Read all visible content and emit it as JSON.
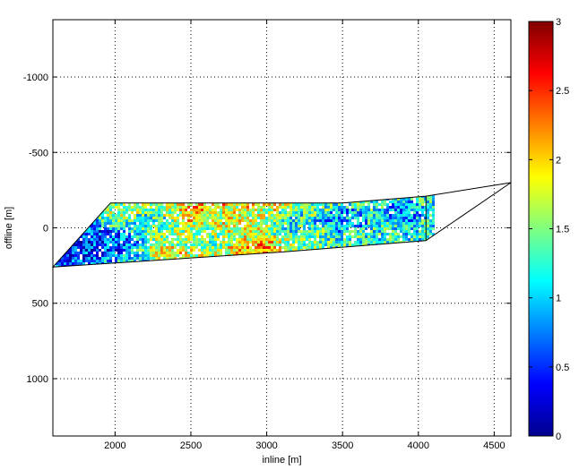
{
  "chart_data": [
    {
      "type": "heatmap",
      "title": "",
      "xlabel": "inline [m]",
      "ylabel": "offline [m]",
      "xlim": [
        1590,
        4610
      ],
      "ylim": [
        1380,
        -1380
      ],
      "y_reversed": true,
      "grid": true,
      "xticks": [
        2000,
        2500,
        3000,
        3500,
        4000,
        4500
      ],
      "xtick_labels": [
        "2000",
        "2500",
        "3000",
        "3500",
        "4000",
        "4500"
      ],
      "yticks": [
        -1000,
        -500,
        0,
        500,
        1000
      ],
      "ytick_labels": [
        "-1000",
        "-500",
        "0",
        "500",
        "1000"
      ],
      "outer_boundary": [
        [
          1590,
          260
        ],
        [
          1970,
          -165
        ],
        [
          3500,
          -165
        ],
        [
          4050,
          -210
        ],
        [
          4610,
          -300
        ],
        [
          4050,
          85
        ],
        [
          3100,
          160
        ],
        [
          1590,
          260
        ]
      ],
      "inner_edge": [
        [
          4050,
          -210
        ],
        [
          4050,
          85
        ]
      ],
      "hotspots": [
        {
          "x": 2820,
          "y": 20,
          "value": 3.0
        },
        {
          "x": 2700,
          "y": -70,
          "value": 2.9
        },
        {
          "x": 2920,
          "y": -60,
          "value": 2.7
        },
        {
          "x": 2350,
          "y": 40,
          "value": 2.6
        },
        {
          "x": 2600,
          "y": 60,
          "value": 2.2
        },
        {
          "x": 2200,
          "y": -30,
          "value": 1.9
        },
        {
          "x": 3150,
          "y": -40,
          "value": 1.8
        },
        {
          "x": 3500,
          "y": -60,
          "value": 1.3
        },
        {
          "x": 3900,
          "y": -110,
          "value": 1.2
        },
        {
          "x": 1800,
          "y": 100,
          "value": 0.6
        },
        {
          "x": 2000,
          "y": 80,
          "value": 0.9
        },
        {
          "x": 1700,
          "y": 180,
          "value": 0.8
        }
      ]
    },
    {
      "type": "colorbar",
      "colormap": "jet",
      "clim": [
        0,
        3
      ],
      "ticks": [
        0,
        0.5,
        1,
        1.5,
        2,
        2.5,
        3
      ],
      "tick_labels": [
        "0",
        "0.5",
        "1",
        "1.5",
        "2",
        "2.5",
        "3"
      ]
    }
  ]
}
